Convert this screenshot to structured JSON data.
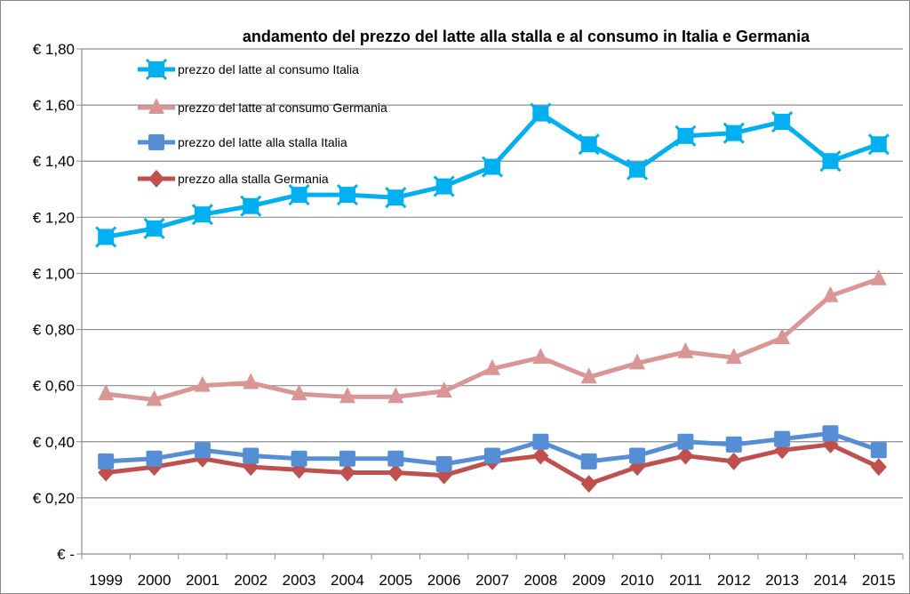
{
  "chart_data": {
    "type": "line",
    "title": "andamento del prezzo del latte alla stalla e al consumo in Italia e Germania",
    "xlabel": "",
    "ylabel": "",
    "categories": [
      "1999",
      "2000",
      "2001",
      "2002",
      "2003",
      "2004",
      "2005",
      "2006",
      "2007",
      "2008",
      "2009",
      "2010",
      "2011",
      "2012",
      "2013",
      "2014",
      "2015"
    ],
    "ylim": [
      0,
      1.8
    ],
    "yticks": [
      0,
      0.2,
      0.4,
      0.6,
      0.8,
      1.0,
      1.2,
      1.4,
      1.6,
      1.8
    ],
    "ytick_labels": [
      "€ -",
      "€ 0,20",
      "€ 0,40",
      "€ 0,60",
      "€ 0,80",
      "€ 1,00",
      "€ 1,20",
      "€ 1,40",
      "€ 1,60",
      "€ 1,80"
    ],
    "grid": true,
    "legend_position": "top-left",
    "series": [
      {
        "name": "prezzo del latte al consumo Italia",
        "color": "#00b0f0",
        "marker": "star-square",
        "values": [
          1.13,
          1.16,
          1.21,
          1.24,
          1.28,
          1.28,
          1.27,
          1.31,
          1.38,
          1.57,
          1.46,
          1.37,
          1.49,
          1.5,
          1.54,
          1.4,
          1.46
        ]
      },
      {
        "name": "prezzo del latte al consumo Germania",
        "color": "#da9694",
        "marker": "triangle",
        "values": [
          0.57,
          0.55,
          0.6,
          0.61,
          0.57,
          0.56,
          0.56,
          0.58,
          0.66,
          0.7,
          0.63,
          0.68,
          0.72,
          0.7,
          0.77,
          0.92,
          0.98
        ]
      },
      {
        "name": "prezzo del latte alla stalla Italia",
        "color": "#558ed5",
        "marker": "square",
        "values": [
          0.33,
          0.34,
          0.37,
          0.35,
          0.34,
          0.34,
          0.34,
          0.32,
          0.35,
          0.4,
          0.33,
          0.35,
          0.4,
          0.39,
          0.41,
          0.43,
          0.37
        ]
      },
      {
        "name": "prezzo alla stalla Germania",
        "color": "#c0504d",
        "marker": "diamond",
        "values": [
          0.29,
          0.31,
          0.34,
          0.31,
          0.3,
          0.29,
          0.29,
          0.28,
          0.33,
          0.35,
          0.25,
          0.31,
          0.35,
          0.33,
          0.37,
          0.39,
          0.31
        ]
      }
    ]
  }
}
